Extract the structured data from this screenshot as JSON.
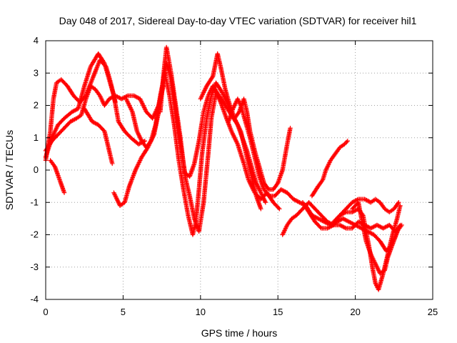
{
  "chart_data": {
    "type": "scatter",
    "title": "Day 048 of 2017, Sidereal Day-to-day VTEC variation (SDTVAR) for receiver hil1",
    "xlabel": "GPS time / hours",
    "ylabel": "SDTVAR / TECUs",
    "xlim": [
      0,
      25
    ],
    "ylim": [
      -4,
      4
    ],
    "x_ticks": [
      "0",
      "5",
      "10",
      "15",
      "20",
      "25"
    ],
    "y_ticks": [
      "4",
      "3",
      "2",
      "1",
      "0",
      "-1",
      "-2",
      "-3",
      "-4"
    ],
    "grid": true,
    "legend": "none",
    "marker": "+",
    "color": "#ff0000",
    "series": [
      {
        "values": [
          [
            0.0,
            0.3
          ],
          [
            0.3,
            1.2
          ],
          [
            0.5,
            2.2
          ],
          [
            0.7,
            2.7
          ],
          [
            1.0,
            2.8
          ],
          [
            1.4,
            2.6
          ],
          [
            1.8,
            2.3
          ],
          [
            2.2,
            2.1
          ],
          [
            2.6,
            2.3
          ],
          [
            3.0,
            2.8
          ],
          [
            3.5,
            3.4
          ],
          [
            3.9,
            3.2
          ],
          [
            4.2,
            2.7
          ],
          [
            4.5,
            2.1
          ]
        ]
      },
      {
        "values": [
          [
            0.0,
            0.4
          ],
          [
            0.4,
            1.0
          ],
          [
            0.8,
            1.4
          ],
          [
            1.2,
            1.6
          ],
          [
            1.7,
            1.8
          ],
          [
            2.1,
            1.9
          ],
          [
            2.5,
            2.6
          ],
          [
            2.9,
            3.2
          ],
          [
            3.4,
            3.6
          ],
          [
            3.8,
            3.3
          ],
          [
            4.1,
            2.8
          ],
          [
            4.4,
            2.3
          ],
          [
            4.7,
            1.5
          ],
          [
            5.1,
            1.2
          ],
          [
            5.5,
            1.0
          ],
          [
            6.0,
            0.8
          ],
          [
            6.4,
            0.9
          ]
        ]
      },
      {
        "values": [
          [
            0.0,
            0.6
          ],
          [
            0.4,
            0.9
          ],
          [
            0.8,
            1.1
          ],
          [
            1.2,
            1.3
          ],
          [
            1.6,
            1.5
          ],
          [
            2.0,
            1.6
          ],
          [
            2.3,
            1.7
          ],
          [
            2.6,
            2.2
          ],
          [
            2.9,
            2.6
          ],
          [
            3.2,
            2.5
          ],
          [
            3.5,
            2.3
          ],
          [
            3.8,
            2.0
          ],
          [
            4.1,
            2.2
          ],
          [
            4.5,
            2.3
          ],
          [
            4.9,
            2.2
          ],
          [
            5.3,
            2.3
          ],
          [
            5.7,
            2.3
          ],
          [
            6.1,
            2.2
          ],
          [
            6.5,
            1.8
          ],
          [
            6.9,
            1.6
          ],
          [
            7.3,
            2.0
          ],
          [
            7.6,
            2.6
          ]
        ]
      },
      {
        "values": [
          [
            0.3,
            0.3
          ],
          [
            0.6,
            0.1
          ],
          [
            0.9,
            -0.3
          ],
          [
            1.2,
            -0.7
          ]
        ]
      },
      {
        "values": [
          [
            2.5,
            1.9
          ],
          [
            3.0,
            1.5
          ],
          [
            3.4,
            1.4
          ],
          [
            3.8,
            1.2
          ],
          [
            4.1,
            0.6
          ],
          [
            4.3,
            0.2
          ]
        ]
      },
      {
        "values": [
          [
            4.4,
            -0.7
          ],
          [
            4.8,
            -1.1
          ],
          [
            5.1,
            -1.0
          ],
          [
            5.4,
            -0.5
          ],
          [
            5.8,
            0.0
          ],
          [
            6.2,
            0.4
          ],
          [
            6.6,
            0.7
          ],
          [
            7.0,
            1.1
          ],
          [
            7.3,
            1.8
          ],
          [
            7.6,
            2.8
          ],
          [
            7.8,
            3.3
          ],
          [
            8.1,
            2.8
          ],
          [
            8.4,
            1.8
          ],
          [
            8.7,
            0.8
          ],
          [
            9.0,
            -0.1
          ],
          [
            9.3,
            -0.2
          ],
          [
            9.6,
            0.2
          ],
          [
            9.9,
            0.9
          ],
          [
            10.2,
            1.8
          ],
          [
            10.5,
            2.3
          ],
          [
            10.8,
            2.6
          ],
          [
            11.2,
            2.3
          ],
          [
            11.6,
            2.0
          ],
          [
            12.0,
            1.7
          ],
          [
            12.4,
            1.4
          ],
          [
            12.7,
            1.0
          ],
          [
            13.0,
            0.6
          ],
          [
            13.3,
            0.1
          ],
          [
            13.6,
            -0.4
          ],
          [
            13.9,
            -0.7
          ],
          [
            14.2,
            -1.0
          ]
        ]
      },
      {
        "values": [
          [
            5.2,
            2.2
          ],
          [
            5.6,
            1.8
          ],
          [
            5.9,
            1.2
          ],
          [
            6.2,
            0.9
          ],
          [
            6.5,
            0.7
          ],
          [
            6.8,
            0.9
          ],
          [
            7.1,
            1.4
          ],
          [
            7.4,
            2.3
          ],
          [
            7.7,
            3.0
          ],
          [
            8.0,
            2.3
          ],
          [
            8.3,
            1.4
          ],
          [
            8.6,
            0.3
          ],
          [
            8.9,
            -0.6
          ],
          [
            9.2,
            -1.4
          ],
          [
            9.5,
            -2.0
          ],
          [
            9.7,
            -1.6
          ],
          [
            9.9,
            -0.6
          ],
          [
            10.1,
            0.5
          ],
          [
            10.4,
            1.6
          ],
          [
            10.7,
            2.3
          ],
          [
            11.0,
            2.7
          ],
          [
            11.4,
            2.4
          ],
          [
            11.8,
            2.0
          ],
          [
            12.2,
            1.6
          ],
          [
            12.6,
            1.2
          ],
          [
            13.0,
            0.4
          ],
          [
            13.3,
            -0.2
          ],
          [
            13.6,
            -0.8
          ],
          [
            13.9,
            -1.2
          ]
        ]
      },
      {
        "values": [
          [
            7.4,
            1.8
          ],
          [
            7.6,
            2.9
          ],
          [
            7.8,
            3.8
          ],
          [
            8.1,
            3.0
          ],
          [
            8.4,
            2.0
          ],
          [
            8.7,
            1.0
          ],
          [
            9.0,
            -0.2
          ],
          [
            9.3,
            -0.8
          ],
          [
            9.6,
            -1.5
          ],
          [
            9.9,
            -1.9
          ],
          [
            10.2,
            -1.0
          ],
          [
            10.5,
            0.5
          ],
          [
            10.7,
            1.6
          ],
          [
            11.0,
            2.4
          ],
          [
            11.3,
            2.1
          ],
          [
            11.6,
            1.7
          ],
          [
            12.0,
            1.2
          ],
          [
            12.4,
            0.8
          ],
          [
            12.8,
            0.2
          ],
          [
            13.1,
            -0.3
          ],
          [
            13.5,
            -0.7
          ],
          [
            13.9,
            -0.9
          ],
          [
            14.3,
            -0.7
          ],
          [
            14.7,
            -1.0
          ],
          [
            15.1,
            -1.2
          ]
        ]
      },
      {
        "values": [
          [
            10.0,
            2.2
          ],
          [
            10.4,
            2.6
          ],
          [
            10.8,
            2.9
          ],
          [
            11.1,
            3.6
          ],
          [
            11.3,
            3.2
          ],
          [
            11.6,
            2.5
          ],
          [
            11.9,
            2.0
          ],
          [
            12.2,
            1.6
          ],
          [
            12.5,
            1.8
          ],
          [
            12.8,
            2.2
          ],
          [
            13.0,
            1.8
          ],
          [
            13.2,
            1.2
          ],
          [
            13.5,
            0.6
          ],
          [
            13.8,
            0.1
          ],
          [
            14.1,
            -0.4
          ],
          [
            14.4,
            -0.6
          ],
          [
            14.7,
            -0.6
          ],
          [
            15.0,
            -0.4
          ],
          [
            15.3,
            0.0
          ],
          [
            15.6,
            0.8
          ],
          [
            15.8,
            1.3
          ]
        ]
      },
      {
        "values": [
          [
            11.8,
            1.5
          ],
          [
            12.1,
            1.9
          ],
          [
            12.4,
            2.2
          ],
          [
            12.6,
            2.0
          ],
          [
            12.9,
            1.5
          ],
          [
            13.2,
            1.0
          ],
          [
            13.5,
            0.4
          ],
          [
            13.8,
            -0.2
          ],
          [
            14.1,
            -0.6
          ],
          [
            14.4,
            -0.8
          ],
          [
            14.8,
            -0.8
          ],
          [
            15.2,
            -0.6
          ],
          [
            15.6,
            -0.7
          ],
          [
            16.0,
            -0.9
          ],
          [
            16.4,
            -1.0
          ],
          [
            16.8,
            -1.1
          ],
          [
            17.2,
            -1.4
          ],
          [
            17.6,
            -1.5
          ],
          [
            18.0,
            -1.6
          ],
          [
            18.4,
            -1.7
          ],
          [
            18.8,
            -1.6
          ],
          [
            19.2,
            -1.5
          ],
          [
            19.6,
            -1.6
          ],
          [
            20.0,
            -1.7
          ],
          [
            20.4,
            -1.8
          ],
          [
            20.8,
            -1.9
          ],
          [
            21.2,
            -2.0
          ],
          [
            21.6,
            -2.2
          ],
          [
            22.0,
            -2.5
          ],
          [
            22.4,
            -2.3
          ],
          [
            22.8,
            -1.8
          ]
        ]
      },
      {
        "values": [
          [
            15.3,
            -2.0
          ],
          [
            15.6,
            -1.7
          ],
          [
            15.9,
            -1.5
          ],
          [
            16.2,
            -1.4
          ],
          [
            16.6,
            -1.2
          ],
          [
            17.0,
            -1.0
          ],
          [
            17.4,
            -1.2
          ],
          [
            17.8,
            -1.4
          ],
          [
            18.2,
            -1.6
          ],
          [
            18.6,
            -1.7
          ],
          [
            19.0,
            -1.7
          ],
          [
            19.4,
            -1.8
          ],
          [
            19.8,
            -1.8
          ],
          [
            20.2,
            -1.6
          ],
          [
            20.6,
            -1.7
          ],
          [
            21.0,
            -1.8
          ],
          [
            21.4,
            -1.7
          ],
          [
            21.8,
            -1.8
          ],
          [
            22.2,
            -1.7
          ],
          [
            22.6,
            -1.9
          ],
          [
            22.9,
            -1.7
          ]
        ]
      },
      {
        "values": [
          [
            16.6,
            -1.0
          ],
          [
            17.0,
            -1.3
          ],
          [
            17.4,
            -1.6
          ],
          [
            17.8,
            -1.8
          ],
          [
            18.2,
            -1.8
          ],
          [
            18.6,
            -1.7
          ],
          [
            19.0,
            -1.4
          ],
          [
            19.4,
            -1.3
          ],
          [
            19.8,
            -1.3
          ],
          [
            20.2,
            -1.2
          ],
          [
            20.5,
            -1.4
          ],
          [
            20.7,
            -1.9
          ],
          [
            20.9,
            -2.4
          ],
          [
            21.1,
            -3.0
          ],
          [
            21.3,
            -3.5
          ],
          [
            21.5,
            -3.7
          ],
          [
            21.8,
            -3.2
          ],
          [
            22.1,
            -2.6
          ],
          [
            22.4,
            -2.0
          ],
          [
            22.7,
            -1.5
          ],
          [
            22.9,
            -1.1
          ]
        ]
      },
      {
        "values": [
          [
            17.2,
            -0.8
          ],
          [
            17.6,
            -0.5
          ],
          [
            17.9,
            -0.3
          ],
          [
            18.1,
            0.0
          ],
          [
            18.4,
            0.3
          ],
          [
            18.7,
            0.5
          ],
          [
            19.0,
            0.7
          ],
          [
            19.3,
            0.8
          ],
          [
            19.5,
            0.9
          ]
        ]
      },
      {
        "values": [
          [
            18.6,
            -1.6
          ],
          [
            19.0,
            -1.4
          ],
          [
            19.4,
            -1.2
          ],
          [
            19.8,
            -1.0
          ],
          [
            20.2,
            -0.9
          ],
          [
            20.6,
            -0.9
          ],
          [
            21.0,
            -1.0
          ],
          [
            21.3,
            -0.9
          ],
          [
            21.6,
            -1.0
          ],
          [
            21.9,
            -1.2
          ],
          [
            22.2,
            -1.3
          ],
          [
            22.5,
            -1.2
          ],
          [
            22.8,
            -1.0
          ]
        ]
      },
      {
        "values": [
          [
            19.8,
            -1.2
          ],
          [
            20.2,
            -1.0
          ],
          [
            20.4,
            -1.5
          ],
          [
            20.7,
            -2.2
          ],
          [
            21.0,
            -2.6
          ],
          [
            21.3,
            -2.9
          ],
          [
            21.6,
            -3.2
          ],
          [
            21.9,
            -3.1
          ],
          [
            22.1,
            -2.7
          ],
          [
            22.4,
            -2.3
          ],
          [
            22.7,
            -1.9
          ],
          [
            23.0,
            -1.7
          ]
        ]
      }
    ]
  }
}
